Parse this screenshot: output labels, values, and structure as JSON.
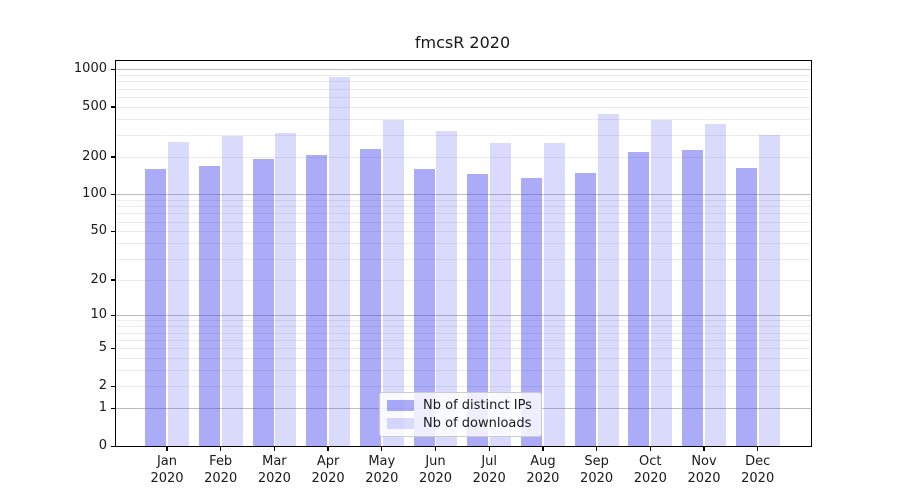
{
  "chart_data": {
    "type": "bar",
    "title": "fmcsR 2020",
    "x_year": "2020",
    "categories": [
      "Jan",
      "Feb",
      "Mar",
      "Apr",
      "May",
      "Jun",
      "Jul",
      "Aug",
      "Sep",
      "Oct",
      "Nov",
      "Dec"
    ],
    "series": [
      {
        "name": "Nb of distinct IPs",
        "color": "rgba(68,68,238,0.45)",
        "values": [
          160,
          168,
          190,
          207,
          230,
          158,
          144,
          136,
          148,
          220,
          228,
          163
        ]
      },
      {
        "name": "Nb of downloads",
        "color": "rgba(68,68,238,0.2)",
        "values": [
          260,
          295,
          312,
          870,
          395,
          318,
          258,
          259,
          435,
          390,
          368,
          296
        ]
      }
    ],
    "y_scale": "log1p",
    "y_ticks": [
      0,
      1,
      2,
      5,
      10,
      20,
      50,
      100,
      200,
      500,
      1000
    ],
    "ylim": [
      0,
      1160
    ],
    "grid_major_at": [
      1,
      10,
      100,
      1000
    ],
    "grid_minor_at": [
      2,
      3,
      4,
      5,
      6,
      7,
      8,
      9,
      20,
      30,
      40,
      50,
      60,
      70,
      80,
      90,
      200,
      300,
      400,
      500,
      600,
      700,
      800,
      900
    ],
    "legend_position": "lower center",
    "colors": {
      "axis": "#000000",
      "grid_major": "#bdbdbd",
      "grid_minor": "#ebebeb",
      "text": "#1a1a1a"
    }
  }
}
